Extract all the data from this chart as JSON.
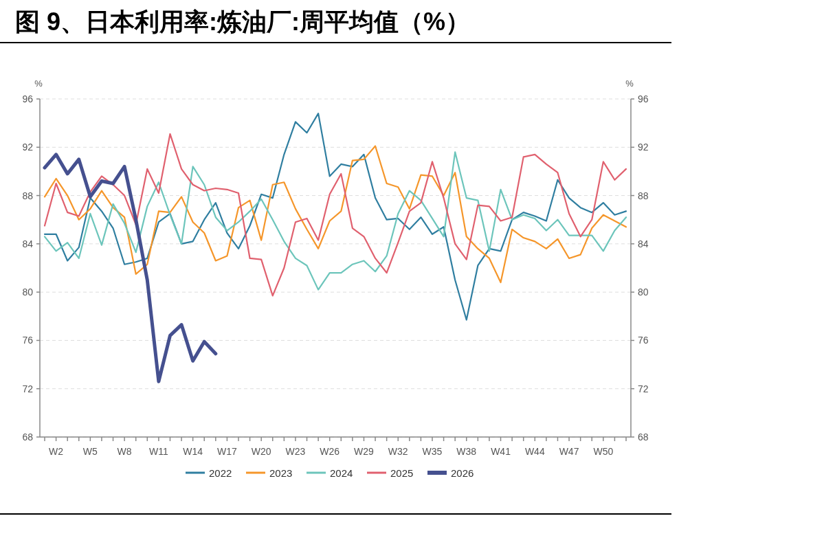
{
  "chart_data": {
    "type": "line",
    "title": "图 9、日本利用率:炼油厂:周平均值（%）",
    "ylabel": "%",
    "y2label": "%",
    "categories": [
      null,
      "W2",
      null,
      null,
      "W5",
      null,
      null,
      "W8",
      null,
      null,
      "W11",
      null,
      null,
      "W14",
      null,
      null,
      "W17",
      null,
      null,
      "W20",
      null,
      null,
      "W23",
      null,
      null,
      "W26",
      null,
      null,
      "W29",
      null,
      null,
      "W32",
      null,
      null,
      "W35",
      null,
      null,
      "W38",
      null,
      null,
      "W41",
      null,
      null,
      "W44",
      null,
      null,
      "W47",
      null,
      null,
      "W50",
      null,
      null
    ],
    "ylim": [
      68,
      96
    ],
    "yticks": [
      68,
      72,
      76,
      80,
      84,
      88,
      92,
      96
    ],
    "y2lim": [
      68,
      96
    ],
    "y2ticks": [
      68,
      72,
      76,
      80,
      84,
      88,
      92,
      96
    ],
    "grid": "y",
    "legend": "bottom",
    "series": [
      {
        "name": "2022",
        "color": "#2f7ea0",
        "values": [
          84.8,
          84.8,
          82.6,
          83.7,
          87.8,
          86.7,
          85.3,
          82.3,
          82.5,
          82.8,
          85.8,
          86.5,
          84.0,
          84.2,
          86.0,
          87.4,
          84.9,
          83.6,
          85.5,
          88.1,
          87.8,
          91.4,
          94.1,
          93.2,
          94.8,
          89.6,
          90.6,
          90.4,
          91.4,
          87.8,
          86.0,
          86.1,
          85.2,
          86.2,
          84.8,
          85.4,
          81.0,
          77.7,
          82.2,
          83.6,
          83.4,
          86.0,
          86.6,
          86.3,
          85.9,
          89.3,
          87.8,
          87.0,
          86.6,
          87.4,
          86.4,
          86.7
        ]
      },
      {
        "name": "2023",
        "color": "#f5962a",
        "values": [
          87.9,
          89.4,
          88.0,
          86.0,
          86.9,
          88.4,
          87.0,
          86.2,
          81.5,
          82.3,
          86.7,
          86.6,
          87.9,
          85.8,
          84.9,
          82.6,
          83.0,
          87.0,
          87.6,
          84.3,
          88.9,
          89.1,
          86.9,
          85.2,
          83.6,
          85.9,
          86.7,
          90.9,
          91.0,
          92.1,
          89.0,
          88.7,
          86.9,
          89.7,
          89.6,
          88.0,
          89.9,
          84.6,
          83.6,
          82.8,
          80.8,
          85.2,
          84.5,
          84.2,
          83.6,
          84.4,
          82.8,
          83.1,
          85.3,
          86.4,
          85.9,
          85.4
        ]
      },
      {
        "name": "2024",
        "color": "#6cc5bb",
        "values": [
          84.6,
          83.4,
          84.1,
          82.8,
          86.5,
          83.9,
          87.3,
          85.7,
          83.3,
          87.1,
          89.1,
          86.4,
          84.0,
          90.4,
          88.9,
          86.2,
          85.1,
          85.8,
          86.7,
          87.7,
          86.0,
          84.2,
          82.8,
          82.2,
          80.2,
          81.6,
          81.6,
          82.3,
          82.6,
          81.7,
          83.0,
          86.5,
          88.4,
          87.6,
          86.1,
          84.6,
          91.6,
          87.8,
          87.6,
          83.4,
          88.5,
          86.0,
          86.4,
          86.1,
          85.1,
          86.0,
          84.7,
          84.7,
          84.7,
          83.4,
          85.1,
          86.2
        ]
      },
      {
        "name": "2025",
        "color": "#e0606e",
        "values": [
          85.5,
          89.0,
          86.6,
          86.3,
          88.3,
          89.6,
          88.9,
          88.0,
          85.6,
          90.2,
          88.2,
          93.1,
          90.2,
          88.9,
          88.4,
          88.6,
          88.5,
          88.2,
          82.8,
          82.7,
          79.7,
          82.0,
          85.8,
          86.1,
          84.3,
          88.1,
          89.8,
          85.3,
          84.6,
          82.8,
          81.6,
          84.1,
          86.7,
          87.4,
          90.8,
          87.8,
          84.0,
          82.7,
          87.2,
          87.1,
          85.9,
          86.2,
          91.2,
          91.4,
          90.6,
          89.9,
          86.5,
          84.6,
          86.0,
          90.8,
          89.3,
          90.2
        ]
      },
      {
        "name": "2026",
        "color": "#45508f",
        "values": [
          90.3,
          91.4,
          89.8,
          91.0,
          87.9,
          89.2,
          89.0,
          90.4,
          86.0,
          81.0,
          72.6,
          76.4,
          77.3,
          74.3,
          75.9,
          74.9,
          null,
          null,
          null,
          null,
          null,
          null,
          null,
          null,
          null,
          null,
          null,
          null,
          null,
          null,
          null,
          null,
          null,
          null,
          null,
          null,
          null,
          null,
          null,
          null,
          null,
          null,
          null,
          null,
          null,
          null,
          null,
          null,
          null,
          null,
          null,
          null
        ]
      }
    ]
  }
}
